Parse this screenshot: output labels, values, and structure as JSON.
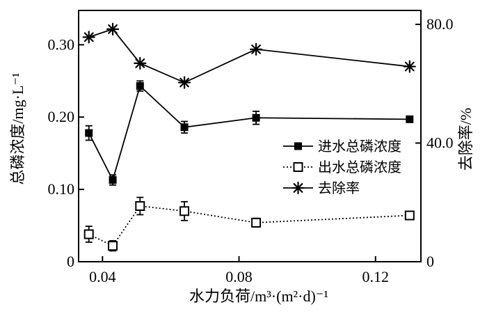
{
  "figure": {
    "background_color": "#ffffff",
    "foreground_color": "#000000"
  },
  "chart_data": {
    "type": "line",
    "title": "",
    "xlabel": "水力负荷/m³·(m²·d)⁻¹",
    "ylabel_left": "总磷浓度/mg·L⁻¹",
    "ylabel_right": "去除率/%",
    "grid": false,
    "legend_position": "middle-right-inside",
    "xlim": [
      0.033,
      0.1333
    ],
    "ylim_left": [
      0,
      0.3475
    ],
    "ylim_right": [
      0,
      84.7
    ],
    "x_ticks": [
      {
        "value": 0.04,
        "label": "0.04"
      },
      {
        "value": 0.08,
        "label": "0.08"
      },
      {
        "value": 0.12,
        "label": "0.12"
      }
    ],
    "y_left_ticks": [
      {
        "value": 0,
        "label": "0"
      },
      {
        "value": 0.1,
        "label": "0.10"
      },
      {
        "value": 0.2,
        "label": "0.20"
      },
      {
        "value": 0.3,
        "label": "0.30"
      }
    ],
    "y_right_ticks": [
      {
        "value": 0,
        "label": "0"
      },
      {
        "value": 40,
        "label": "40.0"
      },
      {
        "value": 80,
        "label": "80.0"
      }
    ],
    "x": [
      0.036,
      0.043,
      0.051,
      0.064,
      0.085,
      0.13
    ],
    "series": [
      {
        "key": "influent-tp",
        "name": "进水总磷浓度",
        "axis": "left",
        "marker": "filled-square",
        "line": "solid",
        "values": [
          0.178,
          0.113,
          0.243,
          0.186,
          0.199,
          0.197
        ],
        "errors": [
          0.01,
          0.007,
          0.007,
          0.008,
          0.009,
          0.002
        ]
      },
      {
        "key": "effluent-tp",
        "name": "出水总磷浓度",
        "axis": "left",
        "marker": "open-square",
        "line": "dotted",
        "values": [
          0.038,
          0.022,
          0.077,
          0.07,
          0.054,
          0.064
        ],
        "errors": [
          0.011,
          0.007,
          0.012,
          0.013,
          0.006,
          0.003
        ]
      },
      {
        "key": "removal-rate",
        "name": "去除率",
        "axis": "right",
        "marker": "asterisk",
        "line": "solid",
        "values": [
          75.7,
          78.4,
          66.9,
          60.4,
          71.6,
          65.8
        ],
        "errors": [
          0,
          0,
          0,
          0,
          0,
          0
        ]
      }
    ]
  }
}
